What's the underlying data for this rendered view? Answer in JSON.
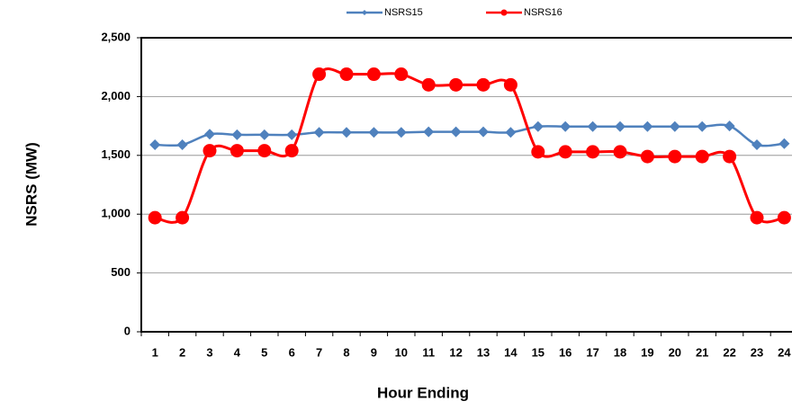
{
  "chart_data": {
    "type": "line",
    "x_label": "Hour Ending",
    "y_label": "NSRS (MW)",
    "categories": [
      "1",
      "2",
      "3",
      "4",
      "5",
      "6",
      "7",
      "8",
      "9",
      "10",
      "11",
      "12",
      "13",
      "14",
      "15",
      "16",
      "17",
      "18",
      "19",
      "20",
      "21",
      "22",
      "23",
      "24"
    ],
    "series": [
      {
        "name": "NSRS15",
        "color": "#4f81bd",
        "marker": "diamond",
        "values": [
          1590,
          1590,
          1680,
          1675,
          1675,
          1675,
          1695,
          1695,
          1695,
          1695,
          1700,
          1700,
          1700,
          1695,
          1745,
          1745,
          1745,
          1745,
          1745,
          1745,
          1745,
          1750,
          1590,
          1600
        ]
      },
      {
        "name": "NSRS16",
        "color": "#ff0000",
        "marker": "circle",
        "values": [
          970,
          970,
          1540,
          1540,
          1540,
          1540,
          2190,
          2190,
          2190,
          2190,
          2100,
          2100,
          2100,
          2100,
          1530,
          1530,
          1530,
          1530,
          1490,
          1490,
          1490,
          1490,
          970,
          970
        ]
      }
    ],
    "ylim": [
      0,
      2500
    ],
    "yticks": [
      0,
      500,
      {
        "value": 1000,
        "label": "1,000"
      },
      {
        "value": 1500,
        "label": "1,500"
      },
      {
        "value": 2000,
        "label": "2,000"
      },
      {
        "value": 2500,
        "label": "2,500"
      }
    ],
    "grid": true,
    "legend": "top"
  }
}
